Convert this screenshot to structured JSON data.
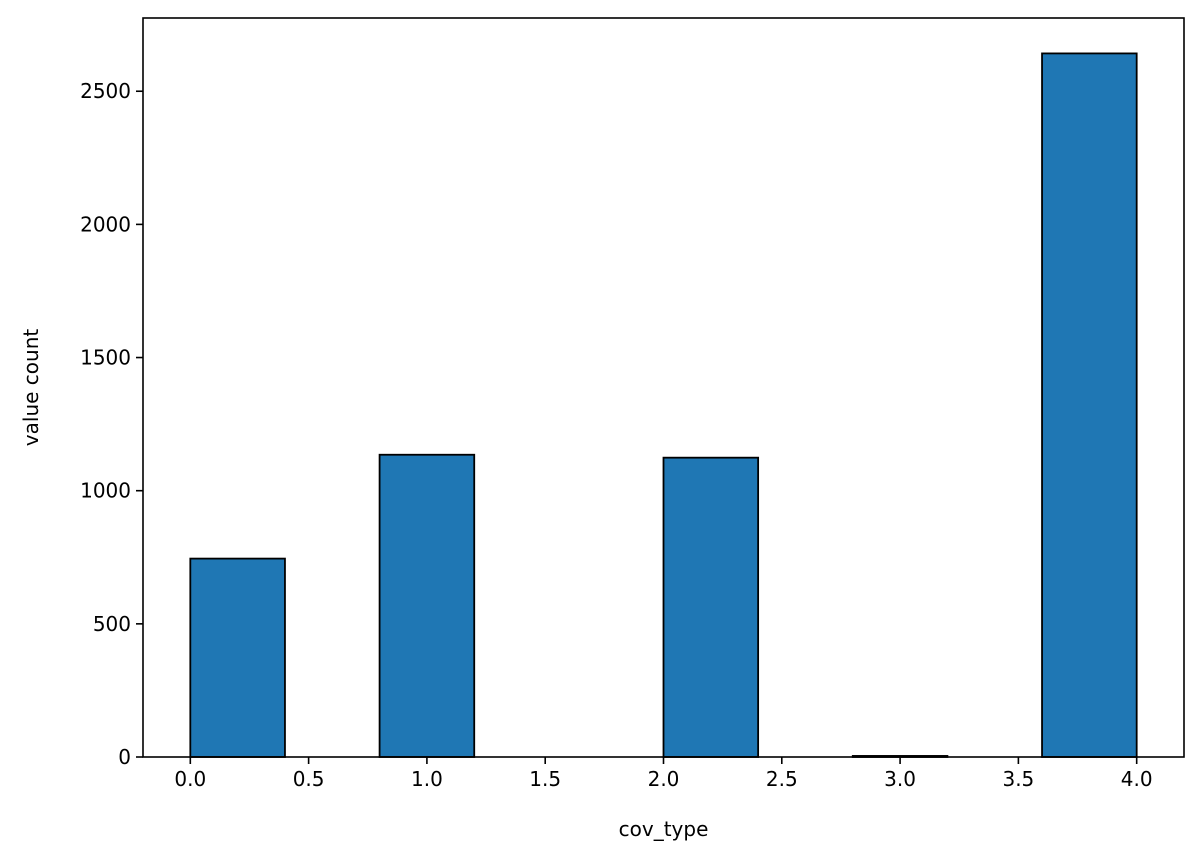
{
  "chart_data": {
    "type": "bar",
    "xlabel": "cov_type",
    "ylabel": "value count",
    "xlim": [
      -0.2,
      4.2
    ],
    "ylim": [
      0,
      2775
    ],
    "grid": false,
    "legend": "none",
    "colors": {
      "bar_fill": "#1f77b4",
      "bar_edge": "#000000"
    },
    "bins": [
      {
        "x0": 0.0,
        "x1": 0.4,
        "value": 745
      },
      {
        "x0": 0.4,
        "x1": 0.8,
        "value": 0
      },
      {
        "x0": 0.8,
        "x1": 1.2,
        "value": 1135
      },
      {
        "x0": 1.2,
        "x1": 1.6,
        "value": 0
      },
      {
        "x0": 1.6,
        "x1": 2.0,
        "value": 0
      },
      {
        "x0": 2.0,
        "x1": 2.4,
        "value": 1124
      },
      {
        "x0": 2.4,
        "x1": 2.8,
        "value": 0
      },
      {
        "x0": 2.8,
        "x1": 3.2,
        "value": 4
      },
      {
        "x0": 3.2,
        "x1": 3.6,
        "value": 0
      },
      {
        "x0": 3.6,
        "x1": 4.0,
        "value": 2642
      }
    ],
    "x_ticks": [
      {
        "value": 0.0,
        "label": "0.0"
      },
      {
        "value": 0.5,
        "label": "0.5"
      },
      {
        "value": 1.0,
        "label": "1.0"
      },
      {
        "value": 1.5,
        "label": "1.5"
      },
      {
        "value": 2.0,
        "label": "2.0"
      },
      {
        "value": 2.5,
        "label": "2.5"
      },
      {
        "value": 3.0,
        "label": "3.0"
      },
      {
        "value": 3.5,
        "label": "3.5"
      },
      {
        "value": 4.0,
        "label": "4.0"
      }
    ],
    "y_ticks": [
      {
        "value": 0,
        "label": "0"
      },
      {
        "value": 500,
        "label": "500"
      },
      {
        "value": 1000,
        "label": "1000"
      },
      {
        "value": 1500,
        "label": "1500"
      },
      {
        "value": 2000,
        "label": "2000"
      },
      {
        "value": 2500,
        "label": "2500"
      }
    ]
  }
}
